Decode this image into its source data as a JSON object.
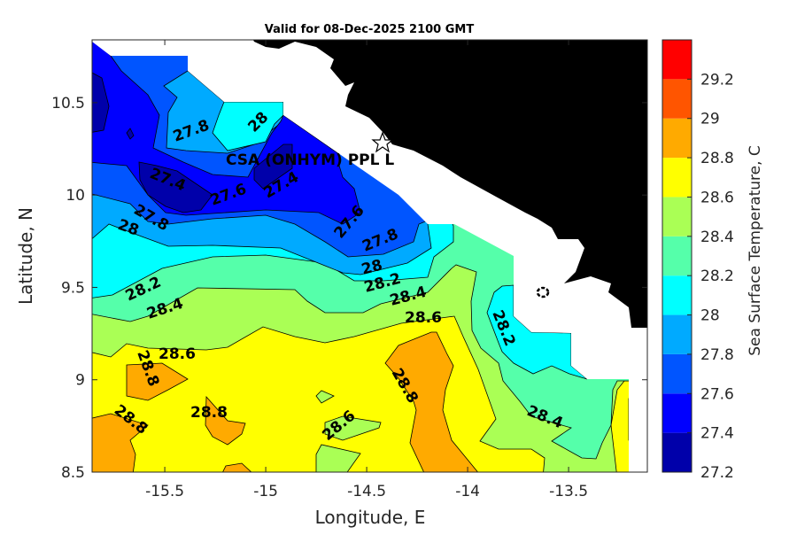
{
  "chart_data": {
    "type": "heatmap",
    "subtype": "filled-contour map",
    "title": "Valid for 08-Dec-2025 2100 GMT",
    "xlabel": "Longitude, E",
    "ylabel": "Latitude, N",
    "xlim": [
      -15.86,
      -13.11
    ],
    "ylim": [
      8.5,
      10.84
    ],
    "xticks": [
      "-15.5",
      "-15",
      "-14.5",
      "-14",
      "-13.5"
    ],
    "xtick_values": [
      -15.5,
      -15,
      -14.5,
      -14,
      -13.5
    ],
    "yticks": [
      "10.5",
      "10",
      "9.5",
      "9",
      "8.5"
    ],
    "ytick_values": [
      10.5,
      10,
      9.5,
      9,
      8.5
    ],
    "colorbar": {
      "label": "Sea Surface Temperature, C",
      "levels": [
        27.2,
        27.4,
        27.6,
        27.8,
        28.0,
        28.2,
        28.4,
        28.6,
        28.8,
        29.0,
        29.2,
        29.4
      ],
      "tick_labels": [
        "27.2",
        "27.4",
        "27.6",
        "27.8",
        "28",
        "28.2",
        "28.4",
        "28.6",
        "28.8",
        "29",
        "29.2"
      ],
      "colors": [
        "#0000aa",
        "#0000ff",
        "#0055ff",
        "#00aaff",
        "#00ffff",
        "#55ffaa",
        "#aaff55",
        "#ffff00",
        "#ffaa00",
        "#ff5500",
        "#ff0000"
      ]
    },
    "contour_labels": [
      "27.4",
      "27.6",
      "27.8",
      "28",
      "27.4",
      "27.6",
      "27.8",
      "28",
      "28.2",
      "28.4",
      "28.6",
      "28.2",
      "28.4",
      "27.8",
      "28",
      "28.6",
      "28.8",
      "28.8",
      "28.8",
      "28.6",
      "28.8",
      "28.2",
      "28.4"
    ],
    "marker_label": "CSA (ONHYM) PPL L",
    "land_color": "#000000",
    "grid": false
  }
}
